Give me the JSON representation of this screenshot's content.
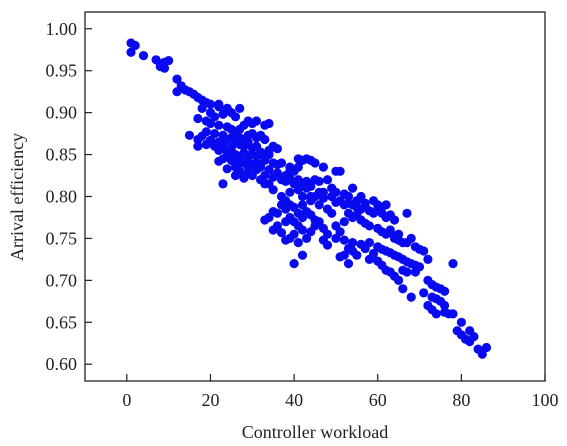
{
  "chart_data": {
    "type": "scatter",
    "title": "",
    "xlabel": "Controller workload",
    "ylabel": "Arrival efficiency",
    "xlim": [
      -10,
      100
    ],
    "ylim": [
      0.58,
      1.02
    ],
    "xticks": [
      0,
      20,
      40,
      60,
      80,
      100
    ],
    "yticks": [
      0.6,
      0.65,
      0.7,
      0.75,
      0.8,
      0.85,
      0.9,
      0.95,
      1.0
    ],
    "xtick_labels": [
      "0",
      "20",
      "40",
      "60",
      "80",
      "100"
    ],
    "ytick_labels": [
      "0.60",
      "0.65",
      "0.70",
      "0.75",
      "0.80",
      "0.85",
      "0.90",
      "0.95",
      "1.00"
    ],
    "marker_color": "#0a0af0",
    "grid": false,
    "legend": "none",
    "points": [
      [
        1,
        0.983
      ],
      [
        2,
        0.98
      ],
      [
        1,
        0.972
      ],
      [
        4,
        0.968
      ],
      [
        7,
        0.963
      ],
      [
        8,
        0.958
      ],
      [
        9,
        0.953
      ],
      [
        10,
        0.962
      ],
      [
        9,
        0.96
      ],
      [
        8,
        0.955
      ],
      [
        12,
        0.94
      ],
      [
        13,
        0.932
      ],
      [
        12,
        0.925
      ],
      [
        14,
        0.927
      ],
      [
        15,
        0.925
      ],
      [
        16,
        0.922
      ],
      [
        17,
        0.918
      ],
      [
        18,
        0.915
      ],
      [
        19,
        0.912
      ],
      [
        20,
        0.91
      ],
      [
        18,
        0.905
      ],
      [
        22,
        0.907
      ],
      [
        24,
        0.905
      ],
      [
        25,
        0.9
      ],
      [
        23,
        0.898
      ],
      [
        26,
        0.895
      ],
      [
        21,
        0.895
      ],
      [
        17,
        0.893
      ],
      [
        19,
        0.89
      ],
      [
        20,
        0.887
      ],
      [
        22,
        0.885
      ],
      [
        24,
        0.883
      ],
      [
        27,
        0.88
      ],
      [
        29,
        0.89
      ],
      [
        30,
        0.887
      ],
      [
        31,
        0.89
      ],
      [
        28,
        0.885
      ],
      [
        33,
        0.885
      ],
      [
        34,
        0.887
      ],
      [
        25,
        0.88
      ],
      [
        26,
        0.876
      ],
      [
        19,
        0.877
      ],
      [
        21,
        0.875
      ],
      [
        23,
        0.873
      ],
      [
        15,
        0.873
      ],
      [
        18,
        0.872
      ],
      [
        17,
        0.868
      ],
      [
        20,
        0.867
      ],
      [
        22,
        0.865
      ],
      [
        24,
        0.867
      ],
      [
        26,
        0.865
      ],
      [
        27,
        0.862
      ],
      [
        28,
        0.86
      ],
      [
        30,
        0.858
      ],
      [
        31,
        0.86
      ],
      [
        29,
        0.865
      ],
      [
        27,
        0.87
      ],
      [
        25,
        0.87
      ],
      [
        29,
        0.873
      ],
      [
        30,
        0.875
      ],
      [
        32,
        0.873
      ],
      [
        31,
        0.87
      ],
      [
        28,
        0.868
      ],
      [
        33,
        0.868
      ],
      [
        25,
        0.858
      ],
      [
        23,
        0.86
      ],
      [
        21,
        0.86
      ],
      [
        19,
        0.862
      ],
      [
        17,
        0.86
      ],
      [
        22,
        0.855
      ],
      [
        24,
        0.853
      ],
      [
        26,
        0.85
      ],
      [
        28,
        0.852
      ],
      [
        29,
        0.849
      ],
      [
        30,
        0.85
      ],
      [
        32,
        0.853
      ],
      [
        34,
        0.855
      ],
      [
        31,
        0.848
      ],
      [
        27,
        0.845
      ],
      [
        25,
        0.843
      ],
      [
        23,
        0.845
      ],
      [
        22,
        0.842
      ],
      [
        28,
        0.84
      ],
      [
        30,
        0.838
      ],
      [
        29,
        0.842
      ],
      [
        31,
        0.84
      ],
      [
        33,
        0.843
      ],
      [
        35,
        0.84
      ],
      [
        36,
        0.838
      ],
      [
        32,
        0.835
      ],
      [
        34,
        0.832
      ],
      [
        26,
        0.835
      ],
      [
        24,
        0.833
      ],
      [
        27,
        0.83
      ],
      [
        29,
        0.828
      ],
      [
        30,
        0.825
      ],
      [
        33,
        0.825
      ],
      [
        35,
        0.823
      ],
      [
        37,
        0.82
      ],
      [
        38,
        0.825
      ],
      [
        39,
        0.822
      ],
      [
        40,
        0.83
      ],
      [
        41,
        0.835
      ],
      [
        42,
        0.843
      ],
      [
        43,
        0.845
      ],
      [
        44,
        0.843
      ],
      [
        45,
        0.84
      ],
      [
        41,
        0.845
      ],
      [
        39,
        0.83
      ],
      [
        36,
        0.828
      ],
      [
        32,
        0.82
      ],
      [
        34,
        0.815
      ],
      [
        28,
        0.822
      ],
      [
        26,
        0.825
      ],
      [
        23,
        0.815
      ],
      [
        38,
        0.818
      ],
      [
        40,
        0.815
      ],
      [
        41,
        0.82
      ],
      [
        42,
        0.815
      ],
      [
        43,
        0.818
      ],
      [
        44,
        0.812
      ],
      [
        46,
        0.818
      ],
      [
        48,
        0.82
      ],
      [
        50,
        0.83
      ],
      [
        51,
        0.83
      ],
      [
        47,
        0.835
      ],
      [
        45,
        0.82
      ],
      [
        43,
        0.81
      ],
      [
        41,
        0.808
      ],
      [
        39,
        0.805
      ],
      [
        37,
        0.8
      ],
      [
        38,
        0.795
      ],
      [
        35,
        0.808
      ],
      [
        33,
        0.815
      ],
      [
        42,
        0.8
      ],
      [
        44,
        0.8
      ],
      [
        46,
        0.805
      ],
      [
        47,
        0.798
      ],
      [
        49,
        0.8
      ],
      [
        50,
        0.793
      ],
      [
        51,
        0.795
      ],
      [
        52,
        0.79
      ],
      [
        53,
        0.792
      ],
      [
        54,
        0.79
      ],
      [
        55,
        0.787
      ],
      [
        56,
        0.785
      ],
      [
        57,
        0.788
      ],
      [
        58,
        0.783
      ],
      [
        59,
        0.78
      ],
      [
        60,
        0.785
      ],
      [
        61,
        0.78
      ],
      [
        62,
        0.775
      ],
      [
        63,
        0.778
      ],
      [
        64,
        0.772
      ],
      [
        67,
        0.78
      ],
      [
        55,
        0.778
      ],
      [
        56,
        0.772
      ],
      [
        57,
        0.768
      ],
      [
        58,
        0.765
      ],
      [
        60,
        0.762
      ],
      [
        61,
        0.758
      ],
      [
        62,
        0.755
      ],
      [
        63,
        0.757
      ],
      [
        64,
        0.75
      ],
      [
        65,
        0.748
      ],
      [
        66,
        0.745
      ],
      [
        67,
        0.745
      ],
      [
        68,
        0.75
      ],
      [
        69,
        0.74
      ],
      [
        70,
        0.737
      ],
      [
        71,
        0.735
      ],
      [
        72,
        0.725
      ],
      [
        54,
        0.775
      ],
      [
        53,
        0.78
      ],
      [
        52,
        0.77
      ],
      [
        50,
        0.765
      ],
      [
        51,
        0.758
      ],
      [
        49,
        0.78
      ],
      [
        48,
        0.785
      ],
      [
        46,
        0.79
      ],
      [
        44,
        0.795
      ],
      [
        42,
        0.79
      ],
      [
        40,
        0.787
      ],
      [
        38,
        0.785
      ],
      [
        36,
        0.78
      ],
      [
        35,
        0.782
      ],
      [
        34,
        0.775
      ],
      [
        33,
        0.772
      ],
      [
        36,
        0.765
      ],
      [
        35,
        0.76
      ],
      [
        37,
        0.757
      ],
      [
        38,
        0.77
      ],
      [
        39,
        0.775
      ],
      [
        40,
        0.77
      ],
      [
        41,
        0.765
      ],
      [
        42,
        0.76
      ],
      [
        40,
        0.755
      ],
      [
        39,
        0.75
      ],
      [
        38,
        0.748
      ],
      [
        41,
        0.745
      ],
      [
        43,
        0.75
      ],
      [
        44,
        0.758
      ],
      [
        45,
        0.765
      ],
      [
        46,
        0.77
      ],
      [
        47,
        0.762
      ],
      [
        48,
        0.755
      ],
      [
        50,
        0.75
      ],
      [
        52,
        0.748
      ],
      [
        54,
        0.745
      ],
      [
        56,
        0.743
      ],
      [
        58,
        0.745
      ],
      [
        60,
        0.74
      ],
      [
        61,
        0.737
      ],
      [
        62,
        0.735
      ],
      [
        63,
        0.733
      ],
      [
        64,
        0.73
      ],
      [
        65,
        0.728
      ],
      [
        66,
        0.725
      ],
      [
        67,
        0.722
      ],
      [
        68,
        0.72
      ],
      [
        69,
        0.718
      ],
      [
        70,
        0.716
      ],
      [
        66,
        0.712
      ],
      [
        67,
        0.71
      ],
      [
        69,
        0.71
      ],
      [
        72,
        0.7
      ],
      [
        73,
        0.695
      ],
      [
        74,
        0.692
      ],
      [
        75,
        0.69
      ],
      [
        76,
        0.687
      ],
      [
        73,
        0.68
      ],
      [
        74,
        0.678
      ],
      [
        75,
        0.675
      ],
      [
        72,
        0.67
      ],
      [
        73,
        0.665
      ],
      [
        76,
        0.662
      ],
      [
        77,
        0.66
      ],
      [
        78,
        0.66
      ],
      [
        74,
        0.66
      ],
      [
        78,
        0.72
      ],
      [
        79,
        0.64
      ],
      [
        80,
        0.635
      ],
      [
        81,
        0.63
      ],
      [
        82,
        0.627
      ],
      [
        83,
        0.633
      ],
      [
        84,
        0.618
      ],
      [
        85,
        0.612
      ],
      [
        86,
        0.62
      ],
      [
        53,
        0.738
      ],
      [
        54,
        0.735
      ],
      [
        52,
        0.73
      ],
      [
        51,
        0.728
      ],
      [
        53,
        0.72
      ],
      [
        55,
        0.73
      ],
      [
        57,
        0.738
      ],
      [
        59,
        0.732
      ],
      [
        58,
        0.725
      ],
      [
        60,
        0.723
      ],
      [
        61,
        0.718
      ],
      [
        62,
        0.712
      ],
      [
        63,
        0.71
      ],
      [
        64,
        0.705
      ],
      [
        65,
        0.7
      ],
      [
        48,
        0.742
      ],
      [
        47,
        0.748
      ],
      [
        45,
        0.772
      ],
      [
        44,
        0.778
      ],
      [
        43,
        0.782
      ],
      [
        42,
        0.775
      ],
      [
        41,
        0.78
      ],
      [
        39,
        0.79
      ],
      [
        37,
        0.79
      ],
      [
        45,
        0.8
      ],
      [
        47,
        0.805
      ],
      [
        49,
        0.81
      ],
      [
        50,
        0.805
      ],
      [
        52,
        0.803
      ],
      [
        53,
        0.8
      ],
      [
        55,
        0.795
      ],
      [
        56,
        0.8
      ],
      [
        57,
        0.792
      ],
      [
        59,
        0.795
      ],
      [
        60,
        0.79
      ],
      [
        61,
        0.787
      ],
      [
        62,
        0.79
      ],
      [
        54,
        0.81
      ],
      [
        20,
        0.9
      ],
      [
        22,
        0.91
      ],
      [
        24,
        0.905
      ],
      [
        27,
        0.905
      ],
      [
        35,
        0.86
      ],
      [
        36,
        0.857
      ],
      [
        34,
        0.85
      ],
      [
        33,
        0.845
      ],
      [
        37,
        0.84
      ],
      [
        39,
        0.835
      ],
      [
        31,
        0.832
      ],
      [
        29,
        0.835
      ],
      [
        27,
        0.84
      ],
      [
        25,
        0.845
      ],
      [
        40,
        0.72
      ],
      [
        42,
        0.73
      ],
      [
        66,
        0.69
      ],
      [
        68,
        0.68
      ],
      [
        71,
        0.685
      ],
      [
        76,
        0.67
      ],
      [
        80,
        0.65
      ],
      [
        82,
        0.64
      ],
      [
        63,
        0.76
      ],
      [
        65,
        0.755
      ]
    ]
  }
}
